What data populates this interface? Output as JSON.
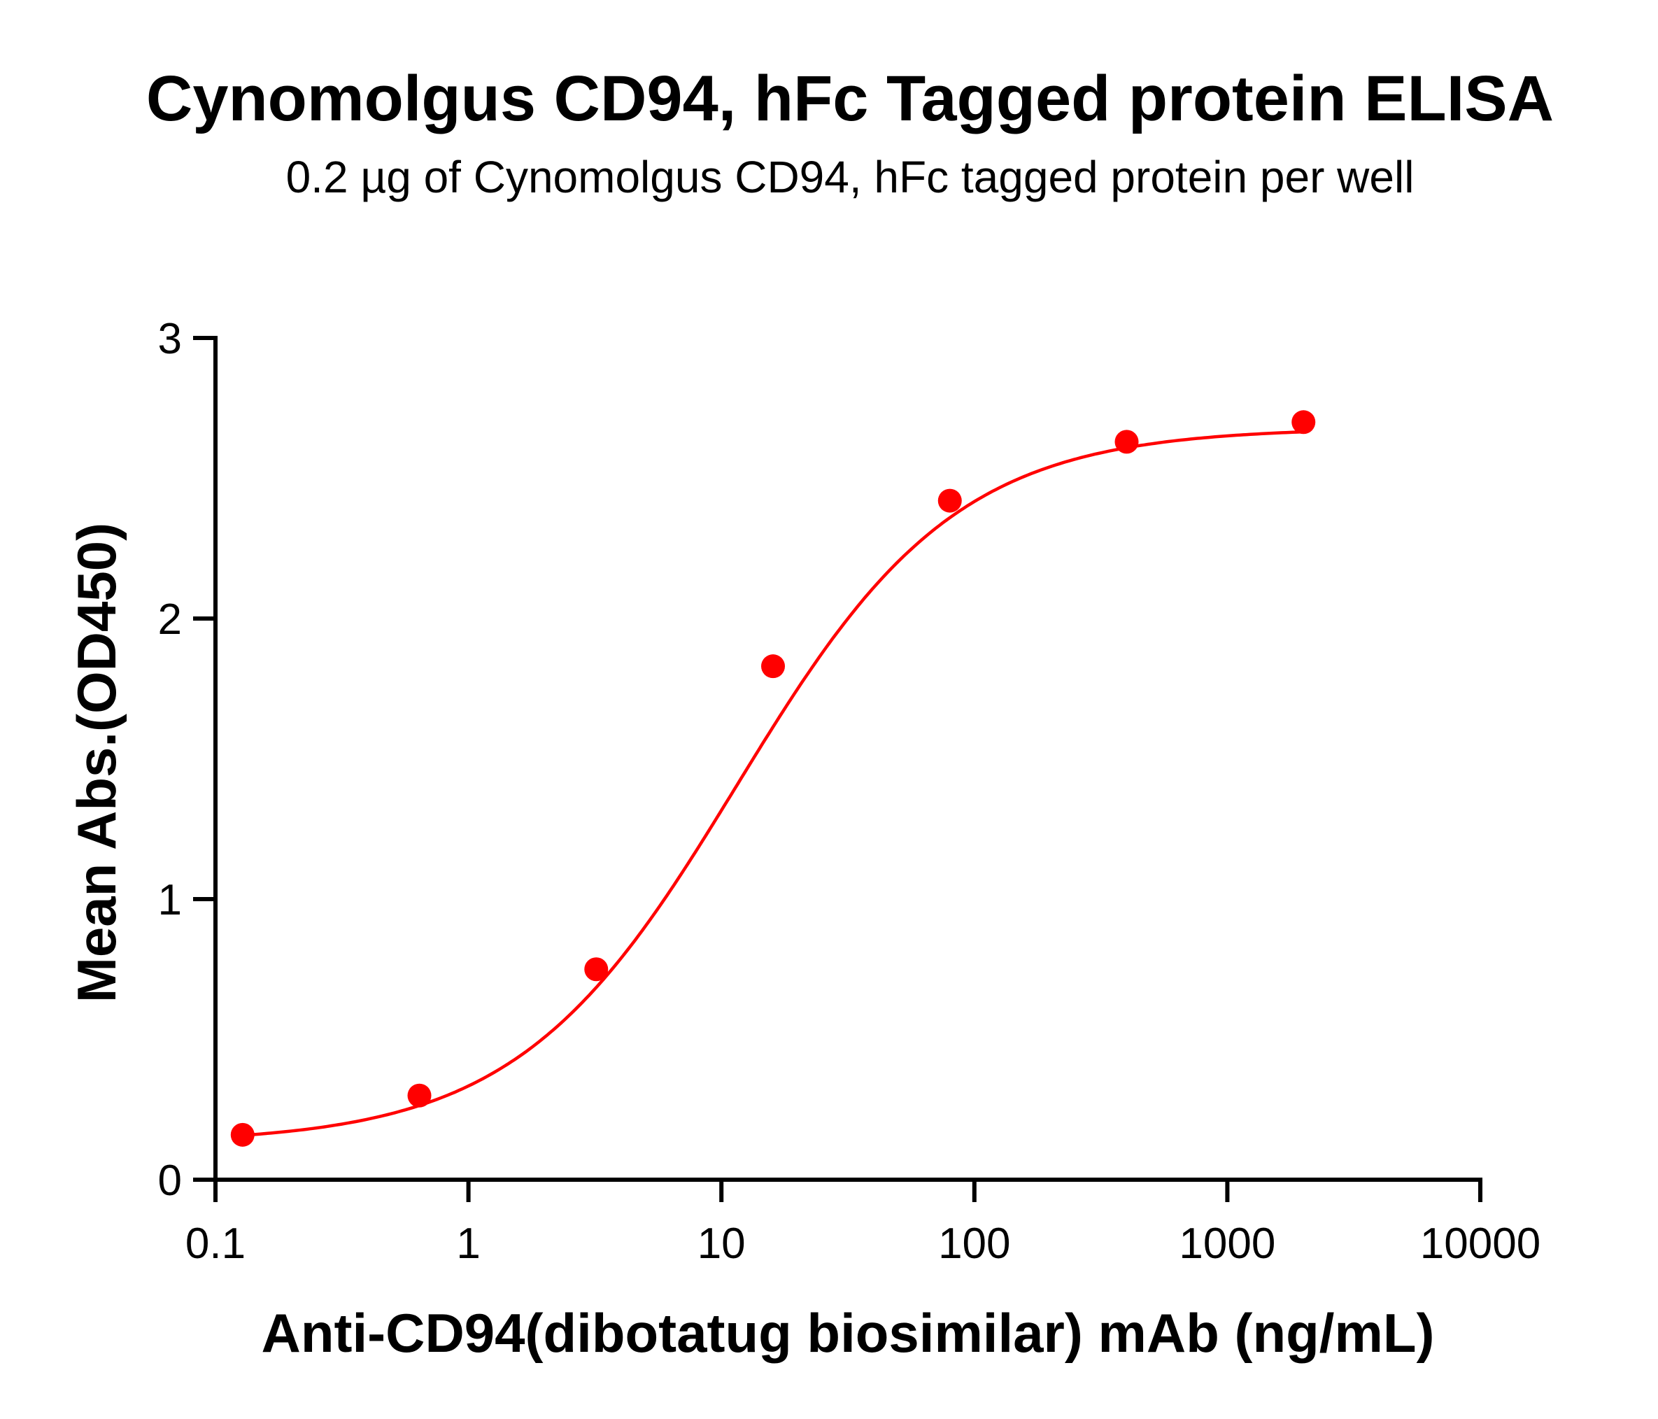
{
  "chart_data": {
    "type": "scatter",
    "title": "Cynomolgus CD94, hFc Tagged protein ELISA",
    "subtitle": "0.2 µg of Cynomolgus CD94, hFc tagged protein per well",
    "xlabel": "Anti-CD94(dibotatug biosimilar) mAb (ng/mL)",
    "ylabel": "Mean Abs.(OD450)",
    "xscale": "log",
    "xlim": [
      0.1,
      10000
    ],
    "ylim": [
      0,
      3
    ],
    "xticks": [
      "0.1",
      "1",
      "10",
      "100",
      "1000",
      "10000"
    ],
    "yticks": [
      "0",
      "1",
      "2",
      "3"
    ],
    "grid": false,
    "series": [
      {
        "color": "#ff0000",
        "x": [
          0.128,
          0.64,
          3.2,
          16,
          80,
          400,
          2000
        ],
        "y": [
          0.16,
          0.3,
          0.75,
          1.83,
          2.42,
          2.63,
          2.7
        ],
        "fit": "sigmoidal curve"
      }
    ]
  }
}
